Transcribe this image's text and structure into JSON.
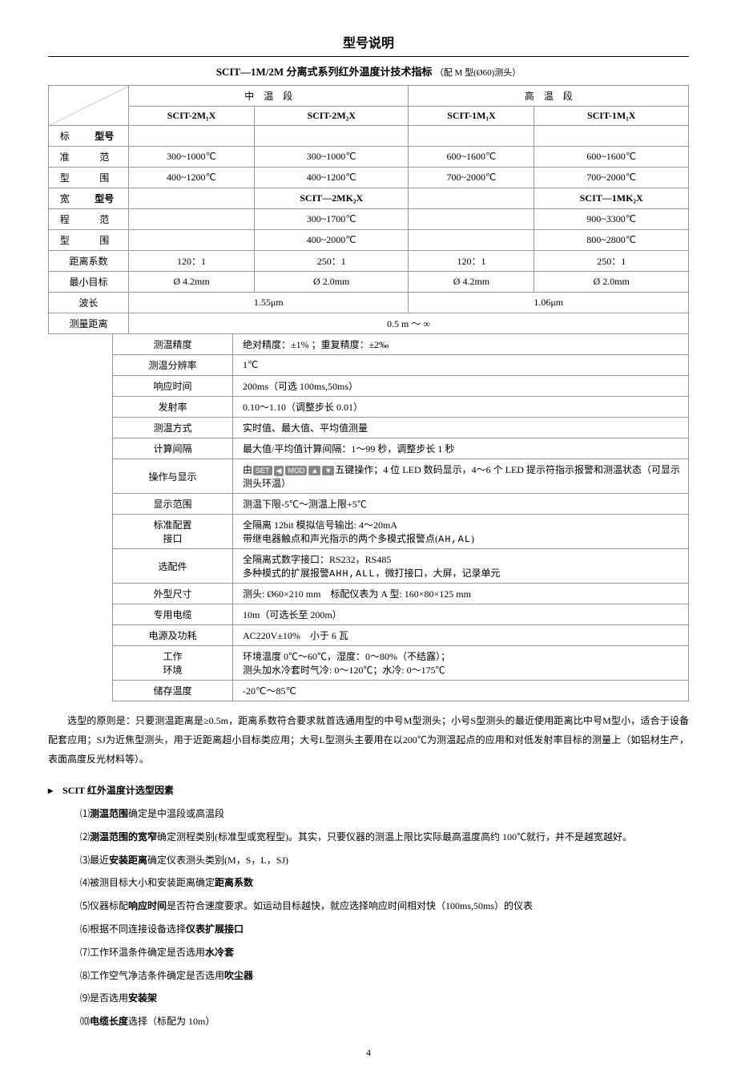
{
  "pageTitle": "型号说明",
  "sectionTitle": "SCIT—1M/2M 分离式系列红外温度计技术指标",
  "sectionNote": "（配 M 型(Ø60)测头）",
  "topHeaders": {
    "mid": "中　温　段",
    "high": "高　温　段"
  },
  "rowLabels": {
    "std1": "标",
    "std2": "准",
    "std3": "型",
    "wide1": "宽",
    "wide2": "程",
    "wide3": "型",
    "model": "型号",
    "fan": "范",
    "wei": "围"
  },
  "cols": {
    "a": "SCIT-2M₁X",
    "b": "SCIT-2M₂X",
    "c": "SCIT-1M₁X",
    "d": "SCIT-1M₁X"
  },
  "std": {
    "r1": [
      "300~1000℃",
      "300~1000℃",
      "600~1600℃",
      "600~1600℃"
    ],
    "r2": [
      "400~1200℃",
      "400~1200℃",
      "700~2000℃",
      "700~2000℃"
    ]
  },
  "wideModel": {
    "b": "SCIT—2MK₂X",
    "d": "SCIT—1MK₂X"
  },
  "wide": {
    "r1b": "300~1700℃",
    "r1d": "900~3300℃",
    "r2b": "400~2000℃",
    "r2d": "800~2800℃"
  },
  "distLabel": "距离系数",
  "dist": [
    "120：1",
    "250：1",
    "120：1",
    "250：1"
  ],
  "minTargetLabel": "最小目标",
  "minTarget": [
    "Ø 4.2mm",
    "Ø 2.0mm",
    "Ø 4.2mm",
    "Ø 2.0mm"
  ],
  "waveLabel": "波长",
  "wave": [
    "1.55μm",
    "1.06μm"
  ],
  "measDistLabel": "测量距离",
  "measDist": "0.5 m ～ ∞",
  "specs": [
    {
      "k": "测温精度",
      "v": "绝对精度：±1% ；重复精度：±2‰"
    },
    {
      "k": "测温分辨率",
      "v": "1℃"
    },
    {
      "k": "响应时间",
      "v": "200ms（可选 100ms,50ms）"
    },
    {
      "k": "发射率",
      "v": "0.10～1.10（调整步长 0.01）"
    },
    {
      "k": "测温方式",
      "v": "实时值、最大值、平均值测量"
    },
    {
      "k": "计算间隔",
      "v": "最大值/平均值计算间隔：1～99 秒，调整步长 1 秒"
    }
  ],
  "opDisp": {
    "k": "操作与显示",
    "pre": "由",
    "keys": [
      "SET",
      "◀",
      "MOD",
      "▲",
      "▼"
    ],
    "post": "五键操作；4 位 LED 数码显示，4～6 个 LED 提示符指示报警和测温状态（可显示测头环温）"
  },
  "specs2": [
    {
      "k": "显示范围",
      "v": "测温下限-5℃～测温上限+5℃"
    }
  ],
  "stdConfig": {
    "k1": "标准配置",
    "k2": "接口",
    "v1": "全隔离 12bit 模拟信号输出: 4～20mA",
    "v2pre": "带继电器触点和声光指示的两个多模式报警点(",
    "v2code": "AH,AL",
    "v2post": ")"
  },
  "option": {
    "k": "选配件",
    "v1": "全隔离式数字接口：RS232，RS485",
    "v2pre": "多种模式的扩展报警",
    "v2code": "AHH,ALL",
    "v2post": "，微打接口，大屏，记录单元"
  },
  "specs3": [
    {
      "k": "外型尺寸",
      "v": "测头: Ø60×210 mm　标配仪表为 A 型: 160×80×125 mm"
    },
    {
      "k": "专用电缆",
      "v": "10m（可选长至 200m）"
    },
    {
      "k": "电源及功耗",
      "v": "AC220V±10%　小于 6 瓦"
    }
  ],
  "env": {
    "k1": "工作",
    "k2": "环境",
    "v1": "环境温度 0℃～60℃，湿度：0～80%（不结露）；",
    "v2": "测头加水冷套时气冷: 0～120℃；水冷: 0～175℃"
  },
  "storage": {
    "k": "储存温度",
    "v": "-20℃～85℃"
  },
  "para1": "选型的原则是：只要测温距离是≥0.5m，距离系数符合要求就首选通用型的中号M型测头；小号S型测头的最近使用距离比中号M型小，适合于设备配套应用；SJ为近焦型测头，用于近距离超小目标类应用；大号L型测头主要用在以200℃为测温起点的应用和对低发射率目标的测量上（如铝材生产，表面高度反光材料等）。",
  "listHead": "▸　SCIT 红外温度计选型因素",
  "list": [
    {
      "n": "⑴",
      "pre": "",
      "b": "测温范围",
      "post": "确定是中温段或高温段"
    },
    {
      "n": "⑵",
      "pre": "",
      "b": "测温范围的宽窄",
      "post": "确定测程类别(标准型或宽程型)。其实，只要仪器的测温上限比实际最高温度高约 100℃就行，并不是越宽越好。"
    },
    {
      "n": "⑶",
      "pre": "最近",
      "b": "安装距离",
      "post": "确定仪表测头类别(M，S，L，SJ)"
    },
    {
      "n": "⑷",
      "pre": "被测目标大小和安装距离确定",
      "b": "距离系数",
      "post": ""
    },
    {
      "n": "⑸",
      "pre": "仪器标配",
      "b": "响应时间",
      "post": "是否符合速度要求。如运动目标越快，就应选择响应时间相对快（100ms,50ms）的仪表"
    },
    {
      "n": "⑹",
      "pre": "根据不同连接设备选择",
      "b": "仪表扩展接口",
      "post": ""
    },
    {
      "n": "⑺",
      "pre": "工作环温条件确定是否选用",
      "b": "水冷套",
      "post": ""
    },
    {
      "n": "⑻",
      "pre": "工作空气净洁条件确定是否选用",
      "b": "吹尘器",
      "post": ""
    },
    {
      "n": "⑼",
      "pre": "是否选用",
      "b": "安装架",
      "post": ""
    },
    {
      "n": "⑽",
      "pre": "",
      "b": "电缆长度",
      "post": "选择（标配为 10m）"
    }
  ],
  "pageNum": "4"
}
